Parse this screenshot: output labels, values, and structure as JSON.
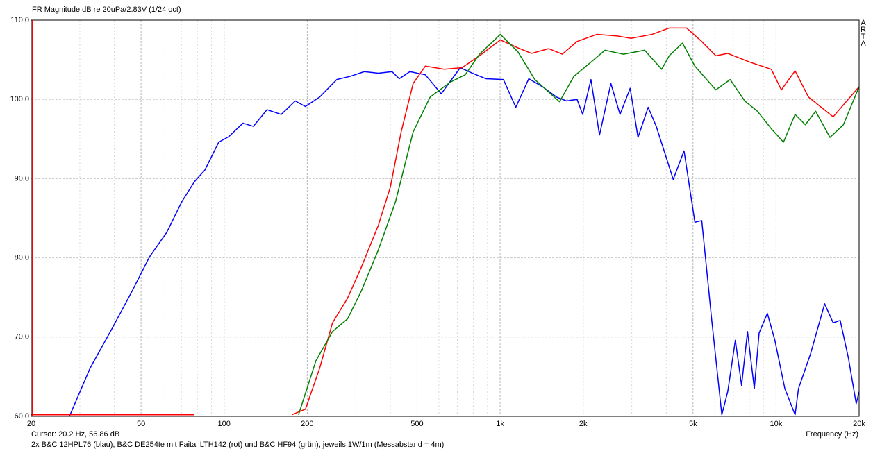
{
  "chart_data": {
    "type": "line",
    "title": "FR Magnitude dB re 20uPa/2.83V (1/24 oct)",
    "watermark": "ARTA",
    "x_label": "Frequency (Hz)",
    "caption": "2x B&C 12HPL76 (blau), B&C DE254te mit Faital LTH142 (rot) und B&C HF94 (grün), jeweils 1W/1m (Messabstand = 4m)",
    "cursor": {
      "x": 20.2,
      "y": 56.86,
      "label": "Cursor: 20.2 Hz, 56.86 dB",
      "color": "#ff0000"
    },
    "xscale": "log",
    "xlim": [
      20,
      20000
    ],
    "ylim": [
      60,
      110
    ],
    "xticks": [
      20,
      50,
      100,
      200,
      500,
      {
        "value": 1000,
        "label": "1k"
      },
      {
        "value": 2000,
        "label": "2k"
      },
      {
        "value": 5000,
        "label": "5k"
      },
      {
        "value": 10000,
        "label": "10k"
      },
      {
        "value": 20000,
        "label": "20k"
      }
    ],
    "x_minor_ticks": [
      30,
      40,
      60,
      70,
      80,
      90,
      300,
      400,
      600,
      700,
      800,
      900,
      3000,
      4000,
      6000,
      7000,
      8000,
      9000
    ],
    "yticks": [
      {
        "value": 60,
        "label": "60.0"
      },
      {
        "value": 70,
        "label": "70.0"
      },
      {
        "value": 80,
        "label": "80.0"
      },
      {
        "value": 90,
        "label": "90.0"
      },
      {
        "value": 100,
        "label": "100.0"
      },
      {
        "value": 110,
        "label": "110.0"
      }
    ],
    "grid": true,
    "series": [
      {
        "color": "#0000ff",
        "x": [
          27.5,
          32.7,
          39,
          46.4,
          53.6,
          61.9,
          70.3,
          78,
          85.2,
          95.6,
          104,
          117,
          127.6,
          143,
          161,
          181,
          197,
          222,
          256,
          286,
          322,
          362,
          406,
          431,
          471,
          536,
          612,
          648,
          717,
          794,
          890,
          1028,
          1140,
          1270,
          1424,
          1600,
          1740,
          1900,
          1992,
          2134,
          2292,
          2520,
          2720,
          2960,
          3160,
          3440,
          3680,
          4240,
          4640,
          5080,
          5380,
          5840,
          6360,
          6680,
          7120,
          7500,
          7880,
          8340,
          8680,
          9300,
          9900,
          10760,
          11720,
          12060,
          13340,
          15000,
          16100,
          17080,
          18280,
          19520,
          20000
        ],
        "values": [
          60,
          66.1,
          70.9,
          75.8,
          80.1,
          83.2,
          87.1,
          89.6,
          91.1,
          94.6,
          95.3,
          97.0,
          96.6,
          98.7,
          98.1,
          99.8,
          99.1,
          100.3,
          102.5,
          102.9,
          103.5,
          103.3,
          103.5,
          102.6,
          103.5,
          103.1,
          100.7,
          101.9,
          104.0,
          103.3,
          102.6,
          102.5,
          99.0,
          102.6,
          101.6,
          100.3,
          99.8,
          100.0,
          98.1,
          102.5,
          95.5,
          102.0,
          98.1,
          101.4,
          95.2,
          99.0,
          96.6,
          89.9,
          93.5,
          84.5,
          84.7,
          72.3,
          60.2,
          63.1,
          69.6,
          63.9,
          70.7,
          63.5,
          70.5,
          73.0,
          69.6,
          63.5,
          60.2,
          63.5,
          67.9,
          74.2,
          71.8,
          72.1,
          67.4,
          61.6,
          63.1
        ]
      },
      {
        "color": "#ff0000",
        "x": [
          20,
          78,
          130,
          176,
          197,
          222,
          247,
          280,
          314,
          362,
          400,
          438,
          484,
          536,
          628,
          728,
          842,
          1002,
          1160,
          1300,
          1500,
          1680,
          1900,
          2240,
          2660,
          2980,
          3550,
          4100,
          4740,
          5380,
          6050,
          6680,
          8040,
          9610,
          10450,
          11720,
          13100,
          16100,
          20000
        ],
        "values": [
          60.2,
          60.2,
          null,
          60.2,
          60.9,
          66.1,
          71.8,
          74.9,
          78.8,
          84.1,
          88.9,
          95.9,
          102.0,
          104.2,
          103.8,
          104.0,
          105.5,
          107.5,
          106.5,
          105.8,
          106.4,
          105.7,
          107.3,
          108.2,
          108.0,
          107.7,
          108.2,
          109.0,
          109.0,
          107.3,
          105.5,
          105.8,
          104.7,
          103.8,
          101.2,
          103.6,
          100.3,
          97.8,
          101.6
        ]
      },
      {
        "color": "#008000",
        "x": [
          186,
          215,
          247,
          280,
          314,
          362,
          418,
          484,
          558,
          662,
          747,
          842,
          1002,
          1160,
          1336,
          1642,
          1850,
          2134,
          2398,
          2800,
          3340,
          3850,
          4100,
          4580,
          5080,
          6050,
          6820,
          7700,
          8560,
          9610,
          10640,
          11720,
          12770,
          13920,
          15680,
          17540,
          20000
        ],
        "values": [
          60.2,
          67.0,
          70.7,
          72.3,
          75.8,
          81.0,
          87.1,
          95.9,
          100.3,
          102.2,
          103.1,
          105.7,
          108.2,
          106.0,
          102.5,
          99.7,
          102.9,
          104.7,
          106.2,
          105.7,
          106.2,
          103.8,
          105.5,
          107.1,
          104.2,
          101.2,
          102.5,
          99.8,
          98.5,
          96.3,
          94.6,
          98.1,
          96.8,
          98.5,
          95.2,
          96.8,
          101.6
        ]
      }
    ]
  }
}
